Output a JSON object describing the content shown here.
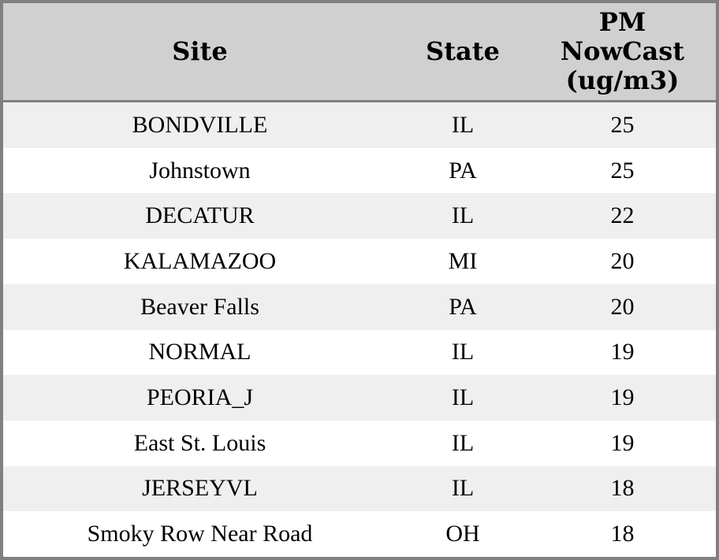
{
  "table": {
    "columns": [
      {
        "label": "Site"
      },
      {
        "label": "State"
      },
      {
        "label": "PM\nNowCast\n(ug/m3)"
      }
    ],
    "rows": [
      {
        "site": "BONDVILLE",
        "state": "IL",
        "pm_nowcast": "25"
      },
      {
        "site": "Johnstown",
        "state": "PA",
        "pm_nowcast": "25"
      },
      {
        "site": "DECATUR",
        "state": "IL",
        "pm_nowcast": "22"
      },
      {
        "site": "KALAMAZOO",
        "state": "MI",
        "pm_nowcast": "20"
      },
      {
        "site": "Beaver Falls",
        "state": "PA",
        "pm_nowcast": "20"
      },
      {
        "site": "NORMAL",
        "state": "IL",
        "pm_nowcast": "19"
      },
      {
        "site": "PEORIA_J",
        "state": "IL",
        "pm_nowcast": "19"
      },
      {
        "site": "East St. Louis",
        "state": "IL",
        "pm_nowcast": "19"
      },
      {
        "site": "JERSEYVL",
        "state": "IL",
        "pm_nowcast": "18"
      },
      {
        "site": "Smoky Row Near Road",
        "state": "OH",
        "pm_nowcast": "18"
      }
    ]
  },
  "colors": {
    "outer_border": "#808080",
    "header_background": "#d0d0d0",
    "header_separator": "#808080",
    "stripe_row_background": "#efefef",
    "plain_row_background": "#ffffff",
    "text": "#000000"
  },
  "chart_data": {
    "type": "table",
    "columns": [
      "Site",
      "State",
      "PM NowCast (ug/m3)"
    ],
    "rows": [
      [
        "BONDVILLE",
        "IL",
        25
      ],
      [
        "Johnstown",
        "PA",
        25
      ],
      [
        "DECATUR",
        "IL",
        22
      ],
      [
        "KALAMAZOO",
        "MI",
        20
      ],
      [
        "Beaver Falls",
        "PA",
        20
      ],
      [
        "NORMAL",
        "IL",
        19
      ],
      [
        "PEORIA_J",
        "IL",
        19
      ],
      [
        "East St. Louis",
        "IL",
        19
      ],
      [
        "JERSEYVL",
        "IL",
        18
      ],
      [
        "Smoky Row Near Road",
        "OH",
        18
      ]
    ],
    "title": "",
    "layout": {
      "header_position": "top",
      "zebra_striping": true,
      "value_sort": "descending"
    }
  }
}
